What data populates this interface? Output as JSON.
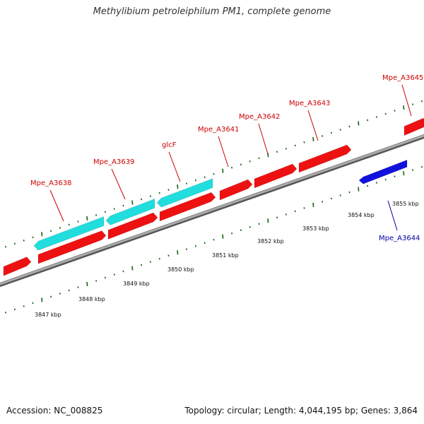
{
  "title": "Methylibium petroleiphilum PM1, complete genome",
  "accession_text": "Accession: NC_008825",
  "summary_text": "Topology: circular; Length: 4,044,195 bp; Genes: 3,864",
  "colors": {
    "forward_gene": "#ee1111",
    "reverse_gene": "#1111dd",
    "rna_like": "#22dddd",
    "backbone": "#888888",
    "ticks": "#116611",
    "label_forward": "#cc0000",
    "label_reverse": "#0000aa"
  },
  "tick_labels": [
    "3847 kbp",
    "3848 kbp",
    "3849 kbp",
    "3850 kbp",
    "3851 kbp",
    "3852 kbp",
    "3853 kbp",
    "3854 kbp",
    "3855 kbp"
  ],
  "genes": [
    {
      "label": "Mpe_A3638",
      "strand": "forward"
    },
    {
      "label": "Mpe_A3639",
      "strand": "forward"
    },
    {
      "label": "glcF",
      "strand": "forward"
    },
    {
      "label": "Mpe_A3641",
      "strand": "forward"
    },
    {
      "label": "Mpe_A3642",
      "strand": "forward"
    },
    {
      "label": "Mpe_A3643",
      "strand": "forward"
    },
    {
      "label": "Mpe_A3644",
      "strand": "reverse"
    },
    {
      "label": "Mpe_A3645",
      "strand": "forward"
    }
  ]
}
